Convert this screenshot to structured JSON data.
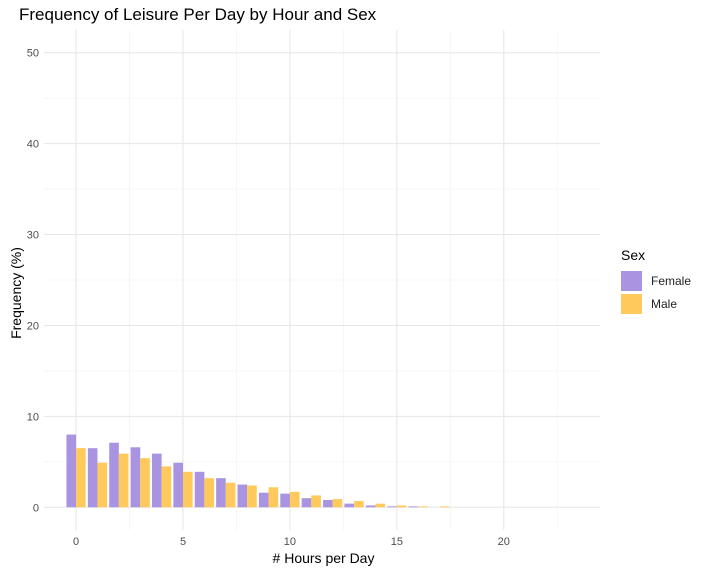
{
  "chart_data": {
    "type": "bar",
    "title": "Frequency of Leisure Per Day by Hour and Sex",
    "xlabel": "# Hours per Day",
    "ylabel": "Frequency (%)",
    "xlim": [
      -1.5,
      24.5
    ],
    "ylim": [
      -2.5,
      52.5
    ],
    "x_ticks": [
      0,
      5,
      10,
      15,
      20
    ],
    "y_ticks": [
      0,
      10,
      20,
      30,
      40,
      50
    ],
    "grid": true,
    "legend": {
      "title": "Sex",
      "position": "right"
    },
    "x": [
      0,
      1,
      2,
      3,
      4,
      5,
      6,
      7,
      8,
      9,
      10,
      11,
      12,
      13,
      14,
      15,
      16,
      17,
      18,
      19,
      20,
      21,
      22,
      23
    ],
    "series": [
      {
        "name": "Female",
        "color": "#a894e0",
        "values": [
          8.0,
          6.5,
          7.1,
          6.6,
          5.9,
          4.9,
          3.9,
          3.2,
          2.5,
          1.6,
          1.5,
          1.0,
          0.8,
          0.4,
          0.2,
          0.1,
          0.1,
          0,
          0,
          0,
          0,
          0,
          0,
          0
        ]
      },
      {
        "name": "Male",
        "color": "#ffc95c",
        "values": [
          6.5,
          4.9,
          5.9,
          5.4,
          4.5,
          3.9,
          3.2,
          2.7,
          2.4,
          2.2,
          1.7,
          1.3,
          0.9,
          0.7,
          0.4,
          0.2,
          0.1,
          0.1,
          0,
          0,
          0,
          0,
          0,
          0
        ]
      }
    ]
  }
}
